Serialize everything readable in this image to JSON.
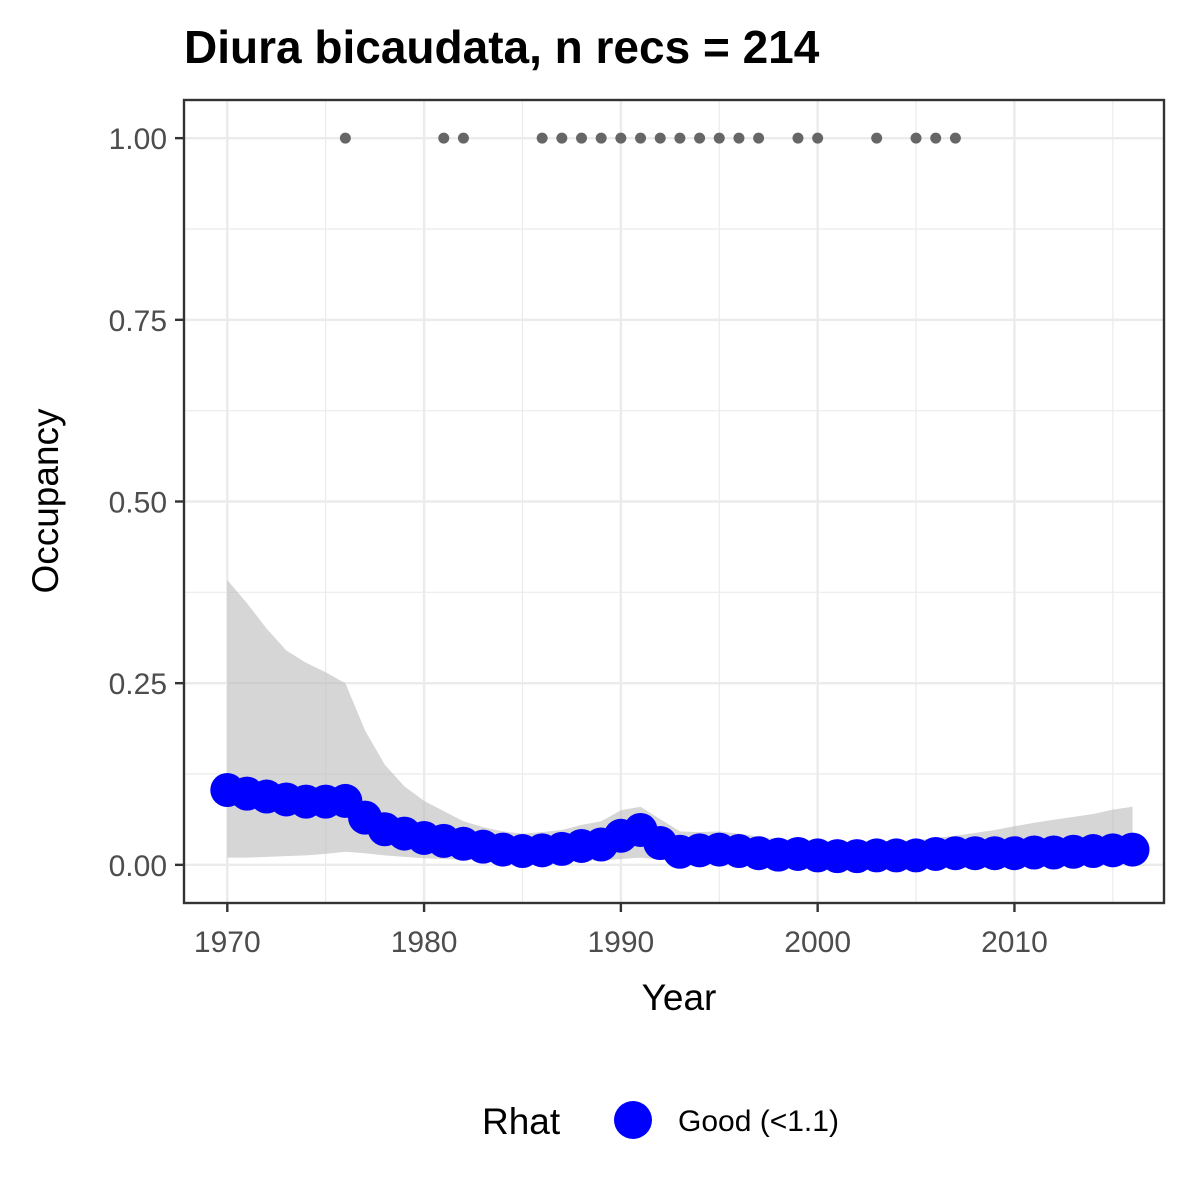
{
  "chart_data": {
    "type": "line",
    "title": "Diura bicaudata, n recs = 214",
    "xlabel": "Year",
    "ylabel": "Occupancy",
    "xlim": [
      1967.8,
      2017.6
    ],
    "ylim": [
      -0.0525,
      1.0525
    ],
    "x_ticks": [
      1970,
      1980,
      1990,
      2000,
      2010
    ],
    "x_tick_labels": [
      "1970",
      "1980",
      "1990",
      "2000",
      "2010"
    ],
    "x_minor_ticks": [
      1975,
      1985,
      1995,
      2005,
      2015
    ],
    "y_ticks": [
      0,
      0.25,
      0.5,
      0.75,
      1.0
    ],
    "y_tick_labels": [
      "0.00",
      "0.25",
      "0.50",
      "0.75",
      "1.00"
    ],
    "y_minor_ticks": [
      0.125,
      0.375,
      0.625,
      0.875
    ],
    "grid": true,
    "legend": {
      "position": "bottom",
      "title": "Rhat",
      "entries": [
        {
          "label": "Good (<1.1)",
          "color": "#0000ff"
        }
      ]
    },
    "colors": {
      "series": "#0000ff",
      "ribbon": "#bdbdbd",
      "records": "#666666",
      "grid": "#ebebeb",
      "border": "#333333"
    },
    "series": [
      {
        "x": [
          1970,
          1971,
          1972,
          1973,
          1974,
          1975,
          1976,
          1977,
          1978,
          1979,
          1980,
          1981,
          1982,
          1983,
          1984,
          1985,
          1986,
          1987,
          1988,
          1989,
          1990,
          1991,
          1992,
          1993,
          1994,
          1995,
          1996,
          1997,
          1998,
          1999,
          2000,
          2001,
          2002,
          2003,
          2004,
          2005,
          2006,
          2007,
          2008,
          2009,
          2010,
          2011,
          2012,
          2013,
          2014,
          2015,
          2016
        ],
        "values": [
          0.103,
          0.098,
          0.094,
          0.09,
          0.087,
          0.087,
          0.088,
          0.065,
          0.049,
          0.043,
          0.037,
          0.033,
          0.029,
          0.025,
          0.021,
          0.019,
          0.02,
          0.022,
          0.026,
          0.028,
          0.04,
          0.048,
          0.03,
          0.018,
          0.02,
          0.021,
          0.019,
          0.016,
          0.014,
          0.015,
          0.013,
          0.012,
          0.012,
          0.013,
          0.013,
          0.013,
          0.015,
          0.016,
          0.016,
          0.016,
          0.016,
          0.017,
          0.017,
          0.018,
          0.019,
          0.02,
          0.021
        ],
        "lower": [
          0.01,
          0.01,
          0.011,
          0.012,
          0.013,
          0.015,
          0.018,
          0.016,
          0.013,
          0.011,
          0.009,
          0.008,
          0.007,
          0.006,
          0.005,
          0.005,
          0.005,
          0.005,
          0.006,
          0.006,
          0.008,
          0.01,
          0.007,
          0.004,
          0.004,
          0.004,
          0.004,
          0.003,
          0.003,
          0.003,
          0.002,
          0.002,
          0.002,
          0.002,
          0.002,
          0.002,
          0.002,
          0.002,
          0.002,
          0.002,
          0.002,
          0.002,
          0.002,
          0.002,
          0.002,
          0.002,
          0.002
        ],
        "upper": [
          0.392,
          0.36,
          0.325,
          0.295,
          0.278,
          0.265,
          0.25,
          0.185,
          0.138,
          0.108,
          0.088,
          0.074,
          0.06,
          0.052,
          0.046,
          0.043,
          0.045,
          0.048,
          0.055,
          0.06,
          0.075,
          0.08,
          0.063,
          0.046,
          0.045,
          0.046,
          0.043,
          0.039,
          0.035,
          0.035,
          0.032,
          0.031,
          0.031,
          0.032,
          0.033,
          0.034,
          0.037,
          0.04,
          0.044,
          0.048,
          0.053,
          0.058,
          0.062,
          0.066,
          0.07,
          0.076,
          0.08
        ]
      }
    ],
    "record_years": [
      1976,
      1981,
      1982,
      1986,
      1987,
      1988,
      1989,
      1990,
      1991,
      1992,
      1993,
      1994,
      1995,
      1996,
      1997,
      1999,
      2000,
      2003,
      2005,
      2006,
      2007
    ],
    "record_value": 1.0
  }
}
